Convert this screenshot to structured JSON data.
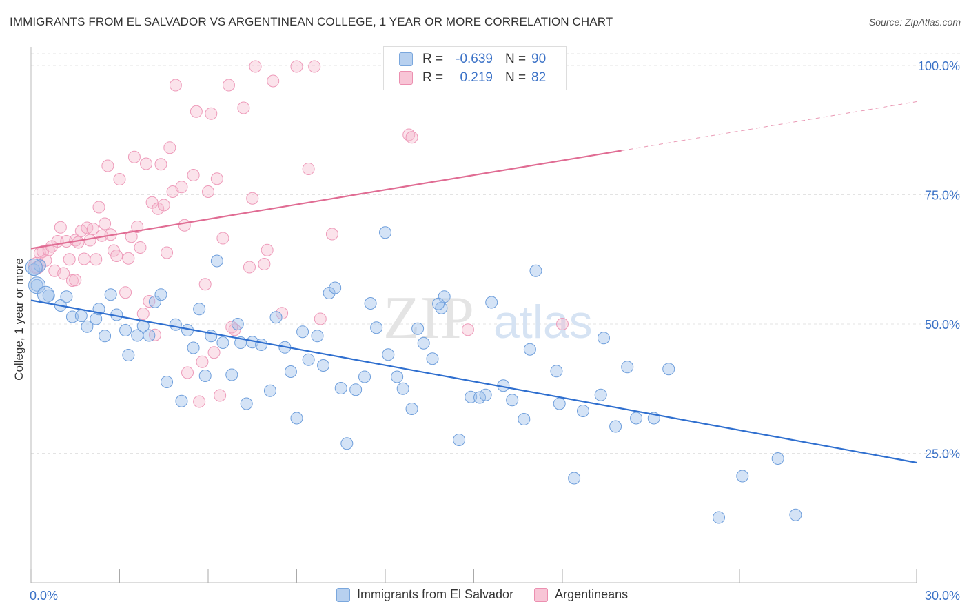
{
  "header": {
    "title": "IMMIGRANTS FROM EL SALVADOR VS ARGENTINEAN COLLEGE, 1 YEAR OR MORE CORRELATION CHART",
    "source": "Source: ZipAtlas.com"
  },
  "legend_stats": {
    "r_label": "R =",
    "n_label": "N =",
    "rows": [
      {
        "r": "-0.639",
        "n": "90"
      },
      {
        "r": "0.219",
        "n": "82"
      }
    ]
  },
  "watermark": {
    "part1": "ZIP",
    "part2": "atlas"
  },
  "colors": {
    "blue": "#5b8fd4",
    "blue_line": "#2f6fcf",
    "pink": "#ec8fb0",
    "pink_line": "#e06c93",
    "axis_text": "#3b72c7"
  },
  "chart_data": {
    "type": "scatter",
    "title": "IMMIGRANTS FROM EL SALVADOR VS ARGENTINEAN COLLEGE, 1 YEAR OR MORE CORRELATION CHART",
    "xlabel": "",
    "ylabel": "College, 1 year or more",
    "xlim": [
      0,
      30
    ],
    "ylim": [
      0,
      102
    ],
    "x_tick_labels": [
      "0.0%",
      "30.0%"
    ],
    "y_ticks": [
      25,
      50,
      75,
      100
    ],
    "y_tick_labels": [
      "25.0%",
      "50.0%",
      "75.0%",
      "100.0%"
    ],
    "grid": true,
    "legend_position": "bottom",
    "series": [
      {
        "name": "Immigrants from El Salvador",
        "color": "#5b8fd4",
        "r": -0.639,
        "n": 90,
        "trend": {
          "x": [
            0,
            30
          ],
          "y": [
            54.6,
            23.2
          ],
          "dashed_from": null
        },
        "points": [
          [
            0.2,
            57.5
          ],
          [
            0.6,
            55.5
          ],
          [
            1.0,
            53.6
          ],
          [
            1.2,
            55.3
          ],
          [
            1.4,
            51.4
          ],
          [
            1.7,
            51.6
          ],
          [
            1.9,
            49.5
          ],
          [
            2.2,
            51.0
          ],
          [
            2.3,
            52.9
          ],
          [
            2.5,
            47.7
          ],
          [
            2.7,
            55.7
          ],
          [
            2.9,
            51.8
          ],
          [
            3.2,
            48.8
          ],
          [
            3.3,
            44.0
          ],
          [
            3.6,
            47.8
          ],
          [
            3.8,
            49.6
          ],
          [
            4.0,
            47.8
          ],
          [
            4.2,
            54.3
          ],
          [
            4.4,
            55.7
          ],
          [
            4.6,
            38.8
          ],
          [
            4.9,
            49.9
          ],
          [
            5.1,
            35.1
          ],
          [
            5.3,
            48.8
          ],
          [
            5.5,
            45.4
          ],
          [
            5.7,
            52.9
          ],
          [
            5.9,
            40.0
          ],
          [
            6.1,
            47.7
          ],
          [
            6.3,
            62.2
          ],
          [
            6.5,
            46.4
          ],
          [
            6.8,
            40.2
          ],
          [
            7.0,
            50.0
          ],
          [
            7.1,
            46.4
          ],
          [
            7.3,
            34.6
          ],
          [
            7.5,
            46.5
          ],
          [
            7.8,
            46.0
          ],
          [
            8.1,
            37.1
          ],
          [
            8.3,
            51.3
          ],
          [
            8.6,
            45.5
          ],
          [
            8.8,
            40.8
          ],
          [
            9.0,
            31.8
          ],
          [
            9.2,
            48.5
          ],
          [
            9.4,
            43.1
          ],
          [
            9.7,
            47.7
          ],
          [
            9.9,
            42.0
          ],
          [
            10.1,
            56.0
          ],
          [
            10.3,
            57.0
          ],
          [
            10.5,
            37.6
          ],
          [
            10.7,
            26.9
          ],
          [
            11.0,
            37.3
          ],
          [
            11.3,
            39.8
          ],
          [
            11.5,
            54.0
          ],
          [
            11.7,
            49.3
          ],
          [
            12.0,
            67.7
          ],
          [
            12.1,
            44.1
          ],
          [
            12.4,
            39.8
          ],
          [
            12.6,
            37.5
          ],
          [
            12.9,
            33.6
          ],
          [
            13.1,
            49.1
          ],
          [
            13.3,
            46.3
          ],
          [
            13.6,
            43.3
          ],
          [
            13.9,
            53.1
          ],
          [
            14.0,
            55.3
          ],
          [
            14.5,
            27.6
          ],
          [
            14.9,
            35.9
          ],
          [
            15.2,
            35.8
          ],
          [
            15.4,
            36.3
          ],
          [
            15.6,
            54.2
          ],
          [
            16.0,
            38.1
          ],
          [
            16.3,
            35.3
          ],
          [
            16.7,
            31.6
          ],
          [
            16.9,
            45.1
          ],
          [
            17.1,
            60.3
          ],
          [
            17.8,
            40.9
          ],
          [
            17.9,
            34.6
          ],
          [
            18.4,
            20.2
          ],
          [
            18.7,
            33.2
          ],
          [
            19.3,
            36.3
          ],
          [
            19.4,
            47.3
          ],
          [
            19.8,
            30.2
          ],
          [
            20.2,
            41.7
          ],
          [
            20.5,
            31.8
          ],
          [
            21.1,
            31.8
          ],
          [
            21.6,
            41.3
          ],
          [
            23.3,
            12.6
          ],
          [
            24.1,
            20.6
          ],
          [
            25.3,
            24.0
          ],
          [
            25.9,
            13.1
          ],
          [
            13.8,
            53.9
          ],
          [
            0.1,
            60.5
          ],
          [
            0.3,
            61.3
          ]
        ],
        "large_points": [
          [
            0.1,
            61.0
          ],
          [
            0.2,
            57.5
          ],
          [
            0.5,
            55.7
          ]
        ]
      },
      {
        "name": "Argentineans",
        "color": "#ec8fb0",
        "r": 0.219,
        "n": 82,
        "trend": {
          "x": [
            0,
            30
          ],
          "y": [
            64.6,
            93.0
          ],
          "dashed_from": 20.0
        },
        "points": [
          [
            0.2,
            61.0
          ],
          [
            0.3,
            63.7
          ],
          [
            0.4,
            64.0
          ],
          [
            0.5,
            62.3
          ],
          [
            0.6,
            64.3
          ],
          [
            0.7,
            65.0
          ],
          [
            0.8,
            60.3
          ],
          [
            0.9,
            66.0
          ],
          [
            1.0,
            68.7
          ],
          [
            1.1,
            59.8
          ],
          [
            1.2,
            66.0
          ],
          [
            1.3,
            62.5
          ],
          [
            1.4,
            58.4
          ],
          [
            1.5,
            66.2
          ],
          [
            1.6,
            65.8
          ],
          [
            1.7,
            68.0
          ],
          [
            1.8,
            62.6
          ],
          [
            1.9,
            68.6
          ],
          [
            2.0,
            66.2
          ],
          [
            2.1,
            68.4
          ],
          [
            2.2,
            62.5
          ],
          [
            2.3,
            72.6
          ],
          [
            2.4,
            67.1
          ],
          [
            2.5,
            69.4
          ],
          [
            2.6,
            80.6
          ],
          [
            2.7,
            67.3
          ],
          [
            2.8,
            64.2
          ],
          [
            2.9,
            63.2
          ],
          [
            3.0,
            78.0
          ],
          [
            3.2,
            56.1
          ],
          [
            3.3,
            62.7
          ],
          [
            3.4,
            66.9
          ],
          [
            3.5,
            82.3
          ],
          [
            3.6,
            68.8
          ],
          [
            3.7,
            64.8
          ],
          [
            3.8,
            52.0
          ],
          [
            3.9,
            81.0
          ],
          [
            4.0,
            54.4
          ],
          [
            4.1,
            73.5
          ],
          [
            4.2,
            47.9
          ],
          [
            4.3,
            72.3
          ],
          [
            4.4,
            80.9
          ],
          [
            4.5,
            73.0
          ],
          [
            4.6,
            63.8
          ],
          [
            4.7,
            84.1
          ],
          [
            4.8,
            75.6
          ],
          [
            4.9,
            96.2
          ],
          [
            5.1,
            76.5
          ],
          [
            5.2,
            69.1
          ],
          [
            5.3,
            40.6
          ],
          [
            5.5,
            78.8
          ],
          [
            5.6,
            91.1
          ],
          [
            5.7,
            35.0
          ],
          [
            5.8,
            42.7
          ],
          [
            5.9,
            57.7
          ],
          [
            6.0,
            75.6
          ],
          [
            6.1,
            90.7
          ],
          [
            6.2,
            44.5
          ],
          [
            6.3,
            78.1
          ],
          [
            6.4,
            36.2
          ],
          [
            6.5,
            66.6
          ],
          [
            6.7,
            96.2
          ],
          [
            6.9,
            48.9
          ],
          [
            7.2,
            91.8
          ],
          [
            7.4,
            61.0
          ],
          [
            7.5,
            74.3
          ],
          [
            7.6,
            99.8
          ],
          [
            7.9,
            61.6
          ],
          [
            8.0,
            64.3
          ],
          [
            8.2,
            97.0
          ],
          [
            8.5,
            52.1
          ],
          [
            9.0,
            99.8
          ],
          [
            9.4,
            80.0
          ],
          [
            9.6,
            99.8
          ],
          [
            9.8,
            51.0
          ],
          [
            10.2,
            67.4
          ],
          [
            12.8,
            86.6
          ],
          [
            12.9,
            86.1
          ],
          [
            14.8,
            48.9
          ],
          [
            18.0,
            50.0
          ],
          [
            6.8,
            49.4
          ],
          [
            1.5,
            58.5
          ]
        ],
        "large_points": [
          [
            0.2,
            61.3
          ]
        ]
      }
    ]
  }
}
